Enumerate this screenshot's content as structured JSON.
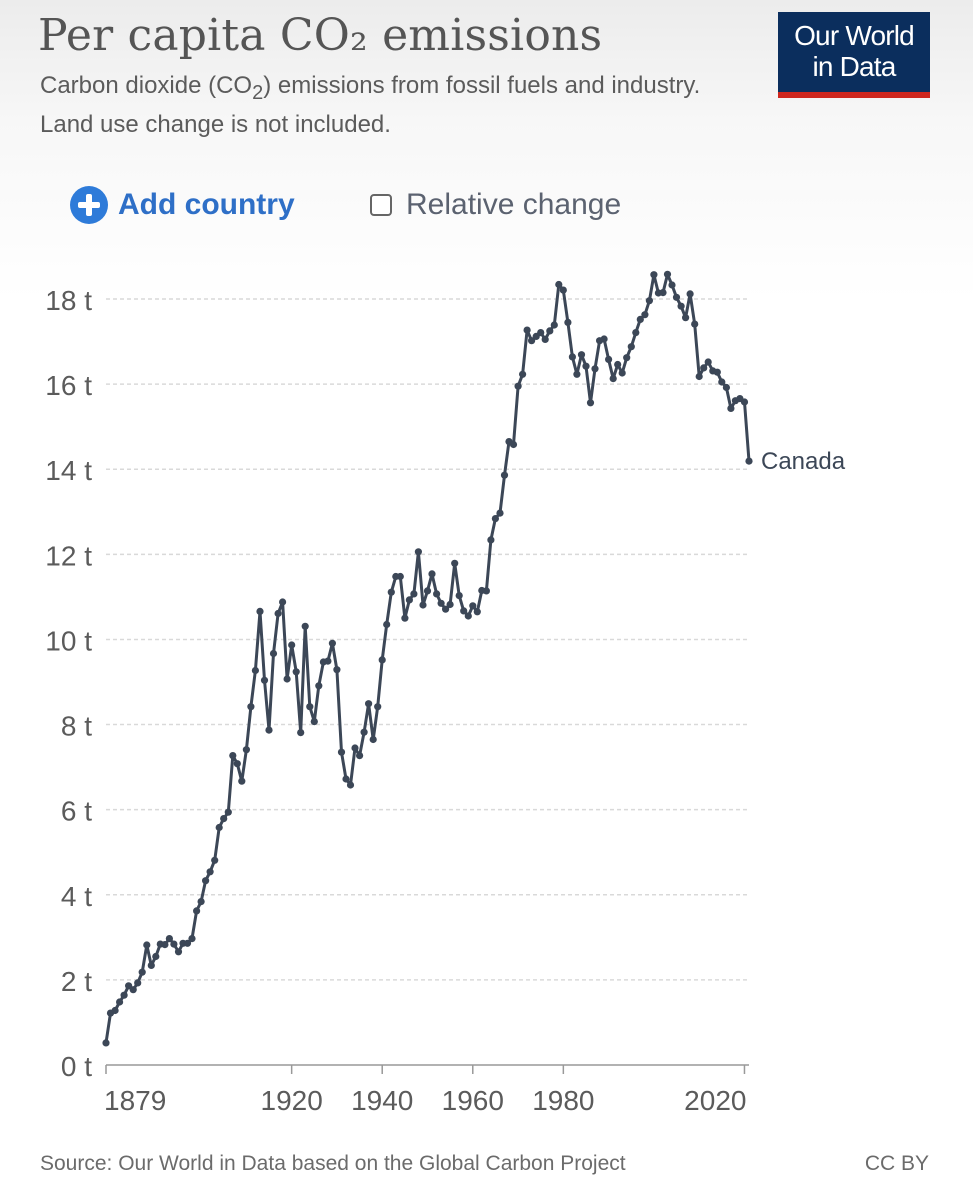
{
  "header": {
    "title": "Per capita CO₂ emissions",
    "subtitle_pre": "Carbon dioxide (CO",
    "subtitle_sub": "2",
    "subtitle_post": ") emissions from fossil fuels and industry. Land use change is not included.",
    "logo_line1": "Our World",
    "logo_line2": "in Data"
  },
  "controls": {
    "add_country": "Add country",
    "relative_change": "Relative change",
    "relative_change_checked": false
  },
  "footer": {
    "source": "Source: Our World in Data based on the Global Carbon Project",
    "license": "CC BY"
  },
  "colors": {
    "line": "#3c4757",
    "grid": "#d9d9d9",
    "axis_text": "#5b5b5b",
    "accent": "#2e7bd9",
    "logo_bg": "#0b2e5d",
    "logo_bar": "#ce261e"
  },
  "chart_data": {
    "type": "line",
    "title": "Per capita CO₂ emissions",
    "xlabel": "",
    "ylabel": "",
    "xlim": [
      1879,
      2021
    ],
    "ylim": [
      0,
      18
    ],
    "x_ticks": [
      1879,
      1920,
      1940,
      1960,
      1980,
      2020
    ],
    "y_ticks": [
      0,
      2,
      4,
      6,
      8,
      10,
      12,
      14,
      16,
      18
    ],
    "y_tick_labels": [
      "0 t",
      "2 t",
      "4 t",
      "6 t",
      "8 t",
      "10 t",
      "12 t",
      "14 t",
      "16 t",
      "18 t"
    ],
    "grid": "horizontal-dashed",
    "legend": "end-of-line label",
    "series": [
      {
        "name": "Canada",
        "x": [
          1879,
          1880,
          1881,
          1882,
          1883,
          1884,
          1885,
          1886,
          1887,
          1888,
          1889,
          1890,
          1891,
          1892,
          1893,
          1894,
          1895,
          1896,
          1897,
          1898,
          1899,
          1900,
          1901,
          1902,
          1903,
          1904,
          1905,
          1906,
          1907,
          1908,
          1909,
          1910,
          1911,
          1912,
          1913,
          1914,
          1915,
          1916,
          1917,
          1918,
          1919,
          1920,
          1921,
          1922,
          1923,
          1924,
          1925,
          1926,
          1927,
          1928,
          1929,
          1930,
          1931,
          1932,
          1933,
          1934,
          1935,
          1936,
          1937,
          1938,
          1939,
          1940,
          1941,
          1942,
          1943,
          1944,
          1945,
          1946,
          1947,
          1948,
          1949,
          1950,
          1951,
          1952,
          1953,
          1954,
          1955,
          1956,
          1957,
          1958,
          1959,
          1960,
          1961,
          1962,
          1963,
          1964,
          1965,
          1966,
          1967,
          1968,
          1969,
          1970,
          1971,
          1972,
          1973,
          1974,
          1975,
          1976,
          1977,
          1978,
          1979,
          1980,
          1981,
          1982,
          1983,
          1984,
          1985,
          1986,
          1987,
          1988,
          1989,
          1990,
          1991,
          1992,
          1993,
          1994,
          1995,
          1996,
          1997,
          1998,
          1999,
          2000,
          2001,
          2002,
          2003,
          2004,
          2005,
          2006,
          2007,
          2008,
          2009,
          2010,
          2011,
          2012,
          2013,
          2014,
          2015,
          2016,
          2017,
          2018,
          2019,
          2020,
          2021
        ],
        "y": [
          0.52,
          1.22,
          1.28,
          1.48,
          1.64,
          1.86,
          1.77,
          1.93,
          2.18,
          2.82,
          2.34,
          2.55,
          2.84,
          2.83,
          2.97,
          2.84,
          2.66,
          2.86,
          2.86,
          2.97,
          3.62,
          3.84,
          4.33,
          4.54,
          4.81,
          5.58,
          5.79,
          5.94,
          7.27,
          7.08,
          6.67,
          7.41,
          8.42,
          9.27,
          10.66,
          9.04,
          7.87,
          9.67,
          10.61,
          10.88,
          9.07,
          9.87,
          9.24,
          7.81,
          10.31,
          8.42,
          8.07,
          8.91,
          9.47,
          9.49,
          9.91,
          9.29,
          7.35,
          6.72,
          6.58,
          7.45,
          7.27,
          7.82,
          8.49,
          7.65,
          8.42,
          9.52,
          10.35,
          11.11,
          11.48,
          11.48,
          10.5,
          10.93,
          11.07,
          12.06,
          10.81,
          11.14,
          11.54,
          11.07,
          10.85,
          10.71,
          10.82,
          11.79,
          11.03,
          10.67,
          10.55,
          10.79,
          10.65,
          11.15,
          11.14,
          12.34,
          12.84,
          12.97,
          13.86,
          14.65,
          14.58,
          15.95,
          16.23,
          17.27,
          17.02,
          17.12,
          17.21,
          17.05,
          17.25,
          17.39,
          18.34,
          18.21,
          17.45,
          16.64,
          16.23,
          16.69,
          16.42,
          15.56,
          16.36,
          17.02,
          17.06,
          16.58,
          16.13,
          16.46,
          16.26,
          16.62,
          16.88,
          17.21,
          17.52,
          17.63,
          17.96,
          18.57,
          18.14,
          18.15,
          18.58,
          18.33,
          18.04,
          17.83,
          17.56,
          18.12,
          17.41,
          16.18,
          16.38,
          16.52,
          16.31,
          16.28,
          16.05,
          15.92,
          15.43,
          15.61,
          15.66,
          15.58,
          14.19
        ]
      }
    ]
  }
}
